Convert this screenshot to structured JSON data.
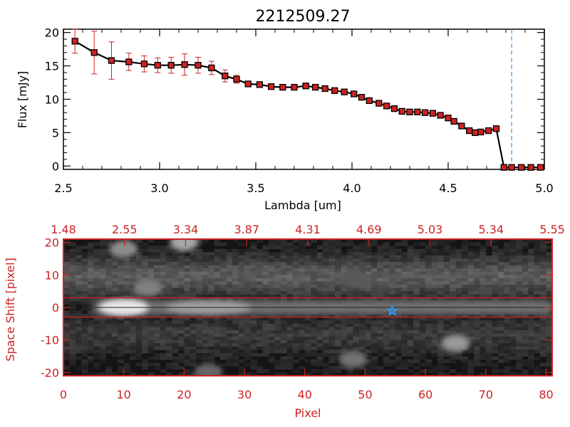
{
  "chart_data": [
    {
      "type": "line",
      "title": "2212509.27",
      "xlabel": "Lambda [um]",
      "ylabel": "Flux [mJy]",
      "xlim": [
        2.5,
        5.0
      ],
      "ylim": [
        -0.5,
        20.5
      ],
      "xticks": [
        "2.5",
        "3.0",
        "3.5",
        "4.0",
        "4.5",
        "5.0"
      ],
      "yticks": [
        "0",
        "5",
        "10",
        "15",
        "20"
      ],
      "marker_color": "#cc2222",
      "line_color": "#000000",
      "errorbar_color": "#cc2222",
      "vline": {
        "x": 4.83,
        "color": "#3399ff",
        "style": "dashed"
      },
      "series": [
        {
          "x": [
            2.56,
            2.66,
            2.75,
            2.84,
            2.92,
            2.99,
            3.06,
            3.13,
            3.2,
            3.27,
            3.34,
            3.4,
            3.46,
            3.52,
            3.58,
            3.64,
            3.7,
            3.76,
            3.81,
            3.86,
            3.91,
            3.96,
            4.01,
            4.05,
            4.09,
            4.14,
            4.18,
            4.22,
            4.26,
            4.3,
            4.34,
            4.38,
            4.42,
            4.46,
            4.5,
            4.53,
            4.57,
            4.61,
            4.64,
            4.67,
            4.71,
            4.75,
            4.79,
            4.83,
            4.88,
            4.93,
            4.98
          ],
          "y": [
            18.7,
            17.0,
            15.8,
            15.6,
            15.3,
            15.1,
            15.1,
            15.2,
            15.1,
            14.7,
            13.5,
            13.0,
            12.3,
            12.2,
            11.9,
            11.8,
            11.8,
            12.0,
            11.8,
            11.6,
            11.3,
            11.1,
            10.8,
            10.3,
            9.8,
            9.4,
            9.0,
            8.6,
            8.2,
            8.1,
            8.1,
            8.0,
            7.9,
            7.6,
            7.2,
            6.7,
            6.0,
            5.3,
            5.0,
            5.1,
            5.3,
            5.6,
            -0.2,
            -0.2,
            -0.2,
            -0.2,
            -0.2
          ],
          "yerr": [
            1.8,
            3.2,
            2.8,
            1.3,
            1.2,
            1.1,
            1.2,
            1.6,
            1.2,
            1.0,
            0.9,
            0.6,
            0.4,
            0.3,
            0.3,
            0.3,
            0.3,
            0.3,
            0.3,
            0.3,
            0.3,
            0.3,
            0.3,
            0.3,
            0.3,
            0.3,
            0.3,
            0.3,
            0.3,
            0.3,
            0.3,
            0.3,
            0.3,
            0.3,
            0.3,
            0.3,
            0.3,
            0.3,
            0.3,
            0.3,
            0.3,
            0.3,
            0.2,
            0.2,
            0.2,
            0.2,
            0.2
          ]
        }
      ]
    },
    {
      "type": "heatmap",
      "xlabel": "Pixel",
      "ylabel": "Space Shift [pixel]",
      "xlim": [
        0,
        81
      ],
      "ylim": [
        -21,
        21
      ],
      "xticks": [
        "0",
        "10",
        "20",
        "30",
        "40",
        "50",
        "60",
        "70",
        "80"
      ],
      "yticks": [
        "-20",
        "-10",
        "0",
        "10",
        "20"
      ],
      "top_ticks": [
        "1.48",
        "2.55",
        "3.34",
        "3.87",
        "4.31",
        "4.69",
        "5.03",
        "5.34",
        "5.55"
      ],
      "axis_color": "#cc2222",
      "extraction_window": [
        -3,
        3
      ],
      "star_marker": {
        "x": 54.5,
        "y": -1.0,
        "color": "#3399ff"
      },
      "colormap": "grayscale",
      "features": [
        {
          "kind": "trace",
          "y": 0,
          "x_start": 5,
          "x_end": 81,
          "peak": 10,
          "brightness": 0.9
        },
        {
          "kind": "blob",
          "x": 10,
          "y": 18,
          "brightness": 0.55
        },
        {
          "kind": "blob",
          "x": 20,
          "y": 20,
          "brightness": 0.65
        },
        {
          "kind": "blob",
          "x": 14,
          "y": 6,
          "brightness": 0.5
        },
        {
          "kind": "blob",
          "x": 65,
          "y": -11,
          "brightness": 0.6
        },
        {
          "kind": "blob",
          "x": 48,
          "y": -16,
          "brightness": 0.45
        },
        {
          "kind": "blob",
          "x": 24,
          "y": -20,
          "brightness": 0.4
        },
        {
          "kind": "blob",
          "x": 48,
          "y": 9,
          "brightness": 0.35
        }
      ]
    }
  ]
}
